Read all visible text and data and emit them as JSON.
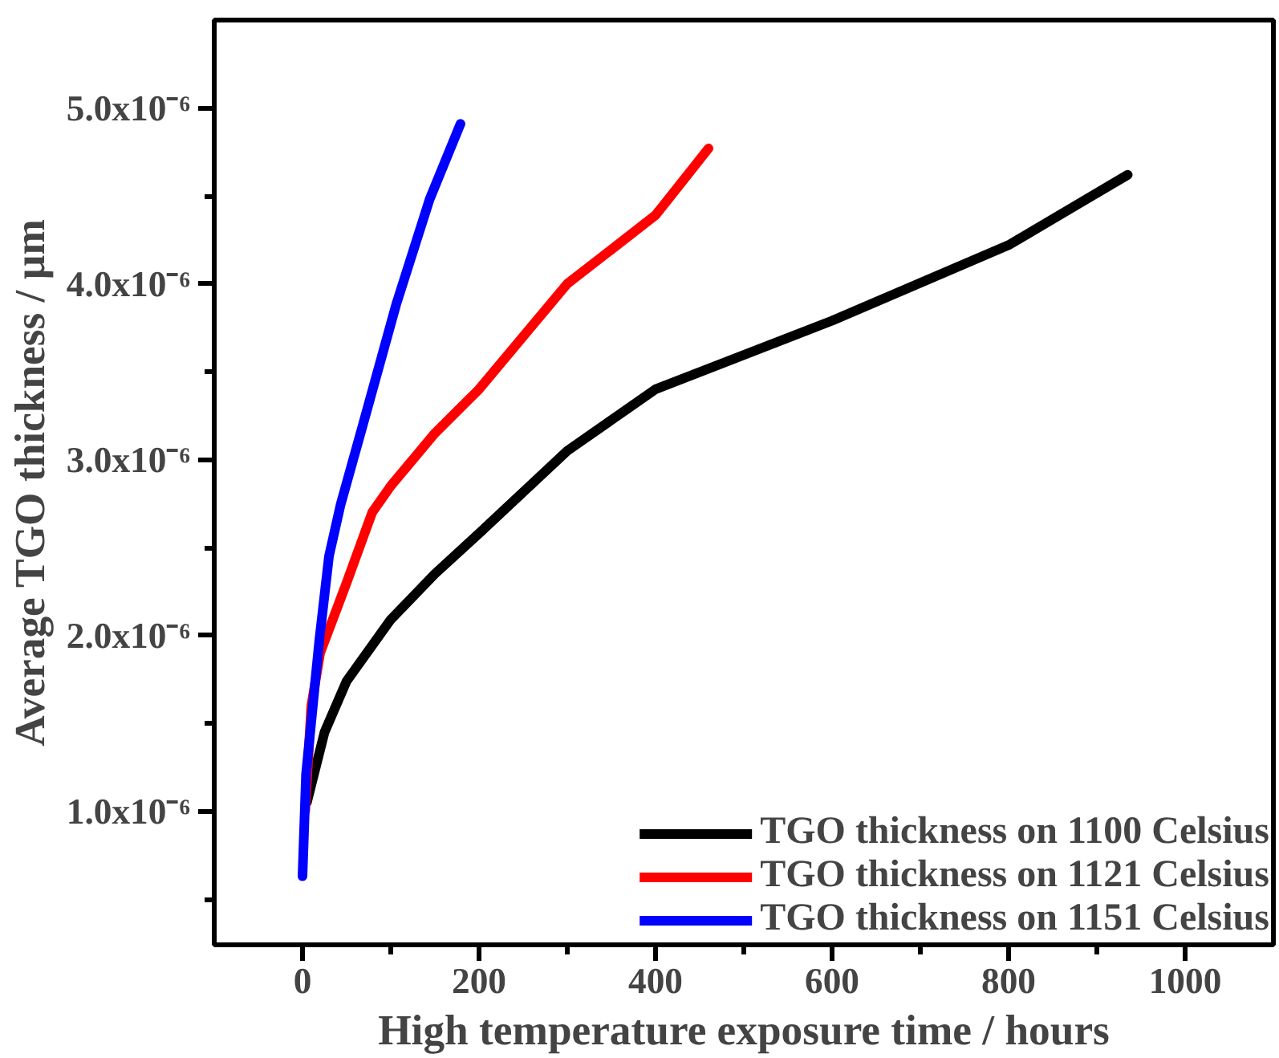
{
  "chart_data": {
    "type": "line",
    "xlabel": "High temperature exposure time / hours",
    "ylabel": "Average TGO thickness / µm",
    "xlim": [
      -100,
      1100
    ],
    "ylim": [
      2.4e-07,
      5.5e-06
    ],
    "xticks": [
      0,
      {
        "value": 100,
        "label": null
      },
      200,
      {
        "value": 300,
        "label": null
      },
      400,
      {
        "value": 500,
        "label": null
      },
      600,
      {
        "value": 700,
        "label": null
      },
      800,
      {
        "value": 900,
        "label": null
      },
      1000
    ],
    "yticks": [
      {
        "value": 5e-07,
        "label": null
      },
      {
        "value": 1e-06,
        "label": "1.0x10⁻⁶"
      },
      {
        "value": 1.5e-06,
        "label": null
      },
      {
        "value": 2e-06,
        "label": "2.0x10⁻⁶"
      },
      {
        "value": 2.5e-06,
        "label": null
      },
      {
        "value": 3e-06,
        "label": "3.0x10⁻⁶"
      },
      {
        "value": 3.5e-06,
        "label": null
      },
      {
        "value": 4e-06,
        "label": "4.0x10⁻⁶"
      },
      {
        "value": 4.5e-06,
        "label": null
      },
      {
        "value": 5e-06,
        "label": "5.0x10⁻⁶"
      }
    ],
    "grid": false,
    "legend": "bottom right",
    "marker": "none",
    "line_style": "solid",
    "series": [
      {
        "name": "TGO thickness on 1100 Celsius",
        "color": "#000000",
        "x": [
          5,
          25,
          50,
          100,
          150,
          200,
          300,
          400,
          600,
          800,
          935
        ],
        "values": [
          1.05e-06,
          1.45e-06,
          1.74e-06,
          2.09e-06,
          2.35e-06,
          2.58e-06,
          3.05e-06,
          3.4e-06,
          3.79e-06,
          4.22e-06,
          4.62e-06
        ]
      },
      {
        "name": "TGO thickness on 1121 Celsius",
        "color": "#ff0000",
        "x": [
          3,
          10,
          20,
          50,
          79,
          100,
          150,
          200,
          300,
          400,
          460
        ],
        "values": [
          1e-06,
          1.6e-06,
          1.9e-06,
          2.3e-06,
          2.7e-06,
          2.85e-06,
          3.15e-06,
          3.4e-06,
          4e-06,
          4.39e-06,
          4.77e-06
        ]
      },
      {
        "name": "TGO thickness on 1151 Celsius",
        "color": "#0000ff",
        "x": [
          0,
          4,
          19,
          30,
          43,
          68,
          106,
          144,
          179
        ],
        "values": [
          6.3e-07,
          1.21e-06,
          1.97e-06,
          2.45e-06,
          2.74e-06,
          3.19e-06,
          3.88e-06,
          4.48e-06,
          4.91e-06
        ]
      }
    ]
  }
}
